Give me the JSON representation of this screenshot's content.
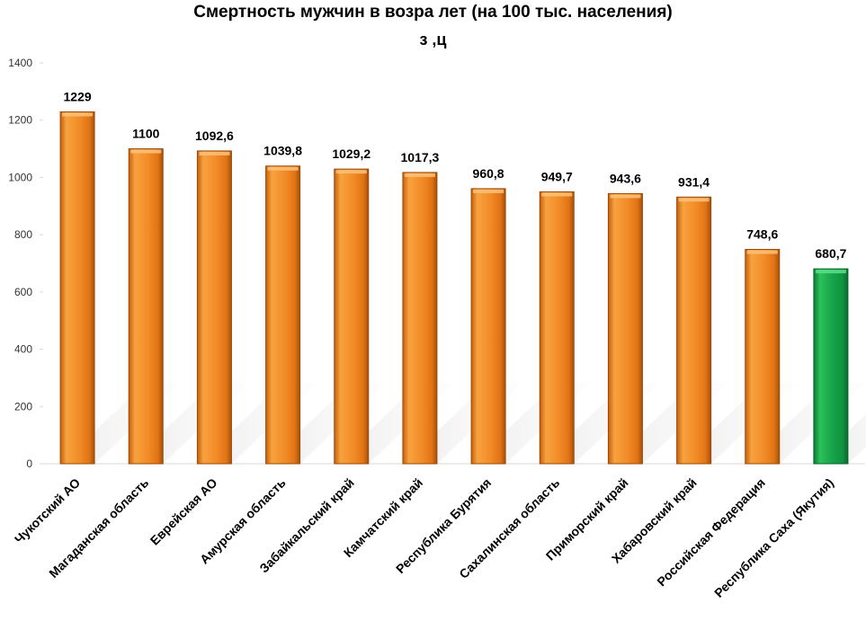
{
  "chart_data": {
    "type": "bar",
    "title": "Смертность мужчин в возра лет (на 100 тыс. населения)",
    "title_line_2": "з ,ц",
    "xlabel": "",
    "ylabel": "",
    "ylim": [
      0,
      1400
    ],
    "yticks": [
      0,
      200,
      400,
      600,
      800,
      1000,
      1200,
      1400
    ],
    "grid": false,
    "legend": "none",
    "categories": [
      "Чукотский АО",
      "Магаданская область",
      "Еврейская АО",
      "Амурская область",
      "Забайкальский край",
      "Камчатский край",
      "Республика Бурятия",
      "Сахалинская область",
      "Приморский край",
      "Хабаровский край",
      "Российская Федерация",
      "Республика Саха (Якутия)"
    ],
    "values": [
      1229,
      1100,
      1092.6,
      1039.8,
      1029.2,
      1017.3,
      960.8,
      949.7,
      943.6,
      931.4,
      748.6,
      680.7
    ],
    "data_labels": [
      "1229",
      "1100",
      "1092,6",
      "1039,8",
      "1029,2",
      "1017,3",
      "960,8",
      "949,7",
      "943,6",
      "931,4",
      "748,6",
      "680,7"
    ],
    "colors": [
      "#f28c28",
      "#f28c28",
      "#f28c28",
      "#f28c28",
      "#f28c28",
      "#f28c28",
      "#f28c28",
      "#f28c28",
      "#f28c28",
      "#f28c28",
      "#f28c28",
      "#16a34a"
    ]
  }
}
